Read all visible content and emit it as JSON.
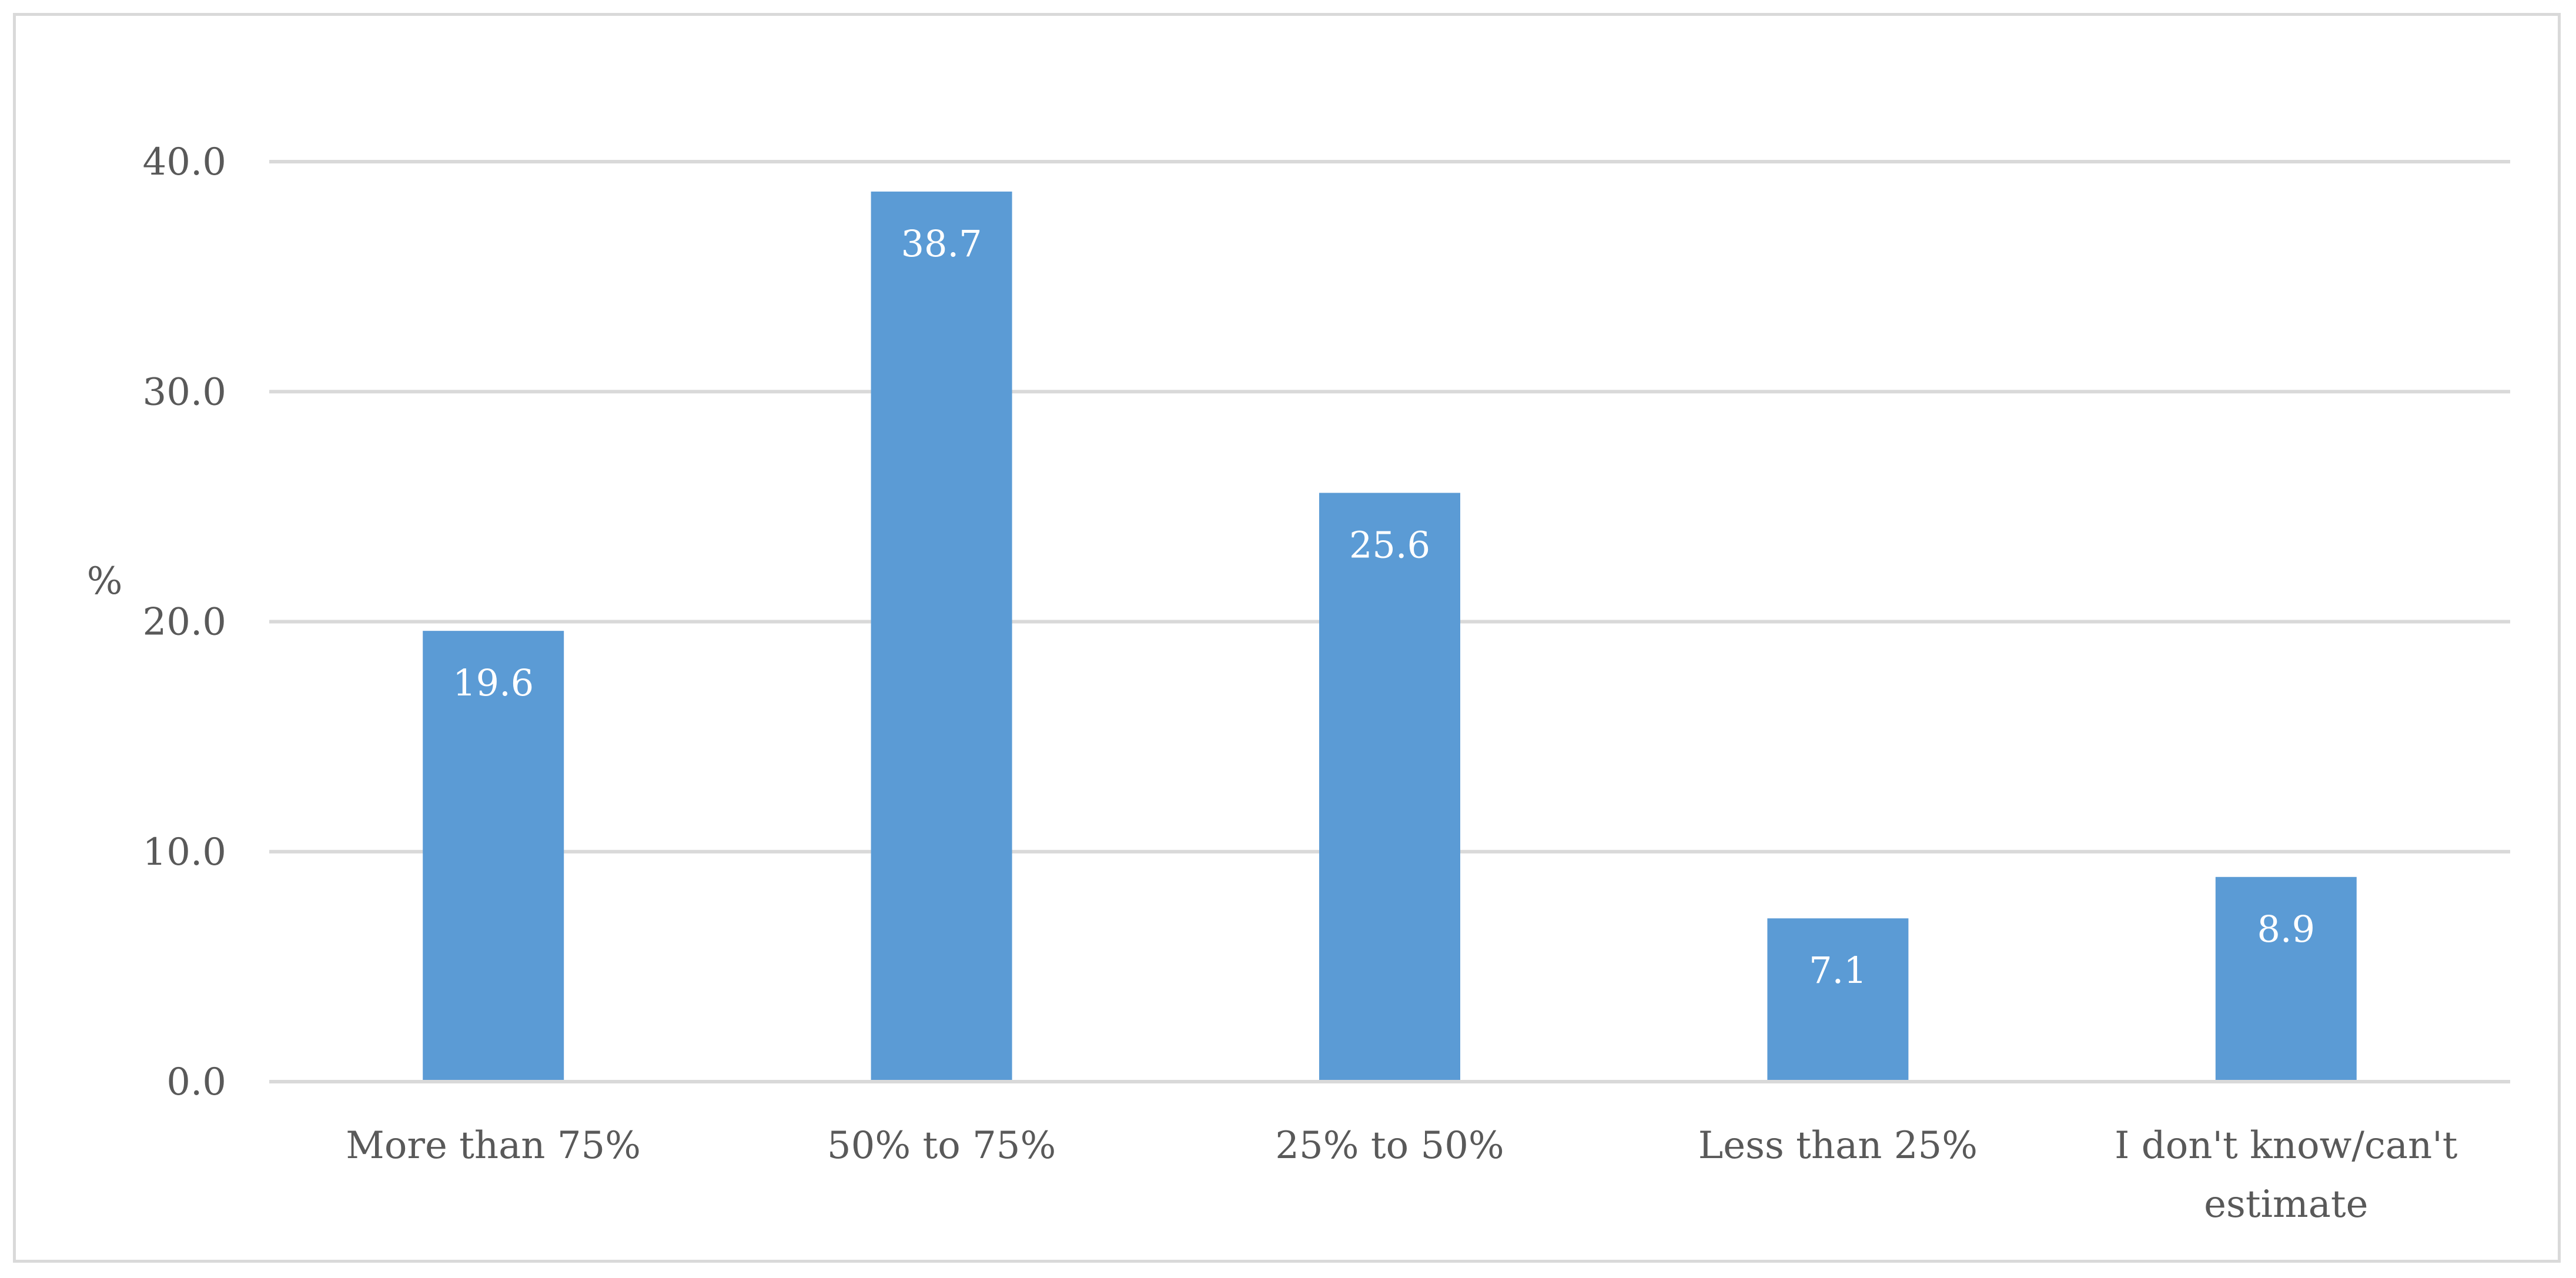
{
  "chart_data": {
    "type": "bar",
    "title": "",
    "xlabel": "",
    "ylabel": "%",
    "ylim": [
      0,
      40
    ],
    "yticks": [
      "0.0",
      "10.0",
      "20.0",
      "30.0",
      "40.0"
    ],
    "grid": true,
    "legend": "none",
    "bar_color": "#5b9bd5",
    "categories": [
      [
        "More than 75%"
      ],
      [
        "50% to 75%"
      ],
      [
        "25% to 50%"
      ],
      [
        "Less than 25%"
      ],
      [
        "I don't know/can't",
        "estimate"
      ]
    ],
    "values": [
      19.6,
      38.7,
      25.6,
      7.1,
      8.9
    ],
    "data_labels": [
      "19.6",
      "38.7",
      "25.6",
      "7.1",
      "8.9"
    ]
  }
}
